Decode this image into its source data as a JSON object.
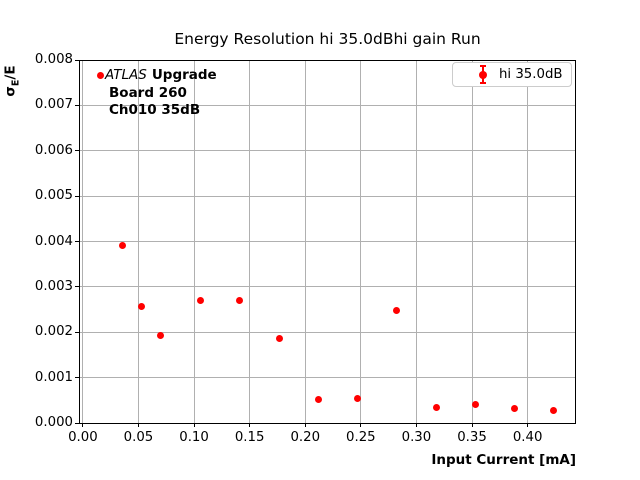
{
  "title": "Energy Resolution hi 35.0dBhi gain Run",
  "annotation": {
    "experiment": "ATLAS",
    "tag": "Upgrade",
    "line2": "Board 260",
    "line3": "Ch010 35dB"
  },
  "legend": {
    "label": "hi 35.0dB",
    "marker": "errorbar-point-icon"
  },
  "axes": {
    "xlabel": "Input Current [mA]",
    "ylabel_sigma": "σ",
    "ylabel_sub": "E",
    "ylabel_rest": "/E"
  },
  "colors": {
    "series": "#ff0000",
    "grid": "#b0b0b0",
    "legend_border": "#cccccc",
    "text": "#000000"
  },
  "chart_data": {
    "type": "scatter",
    "title": "Energy Resolution hi 35.0dBhi gain Run",
    "xlabel": "Input Current [mA]",
    "ylabel": "sigma_E / E",
    "legend_entries": [
      "hi 35.0dB"
    ],
    "legend_position": "upper right",
    "grid": true,
    "marker": "o",
    "style": "errorbar",
    "xlim": [
      -0.0035,
      0.4435
    ],
    "ylim": [
      0,
      0.008
    ],
    "x_ticks": [
      0.0,
      0.05,
      0.1,
      0.15,
      0.2,
      0.25,
      0.3,
      0.35,
      0.4
    ],
    "y_ticks": [
      0.0,
      0.001,
      0.002,
      0.003,
      0.004,
      0.005,
      0.006,
      0.007,
      0.008
    ],
    "x_tick_decimals": 2,
    "y_tick_decimals": 3,
    "series": [
      {
        "name": "hi 35.0dB",
        "color": "#ff0000",
        "points": [
          [
            0.016,
            0.00765
          ],
          [
            0.036,
            0.00392
          ],
          [
            0.053,
            0.00256
          ],
          [
            0.07,
            0.00192
          ],
          [
            0.106,
            0.00271
          ],
          [
            0.141,
            0.00271
          ],
          [
            0.177,
            0.00187
          ],
          [
            0.212,
            0.00051
          ],
          [
            0.247,
            0.00053
          ],
          [
            0.282,
            0.00249
          ],
          [
            0.318,
            0.00035
          ],
          [
            0.353,
            0.0004
          ],
          [
            0.388,
            0.00032
          ],
          [
            0.423,
            0.00027
          ]
        ]
      }
    ]
  }
}
